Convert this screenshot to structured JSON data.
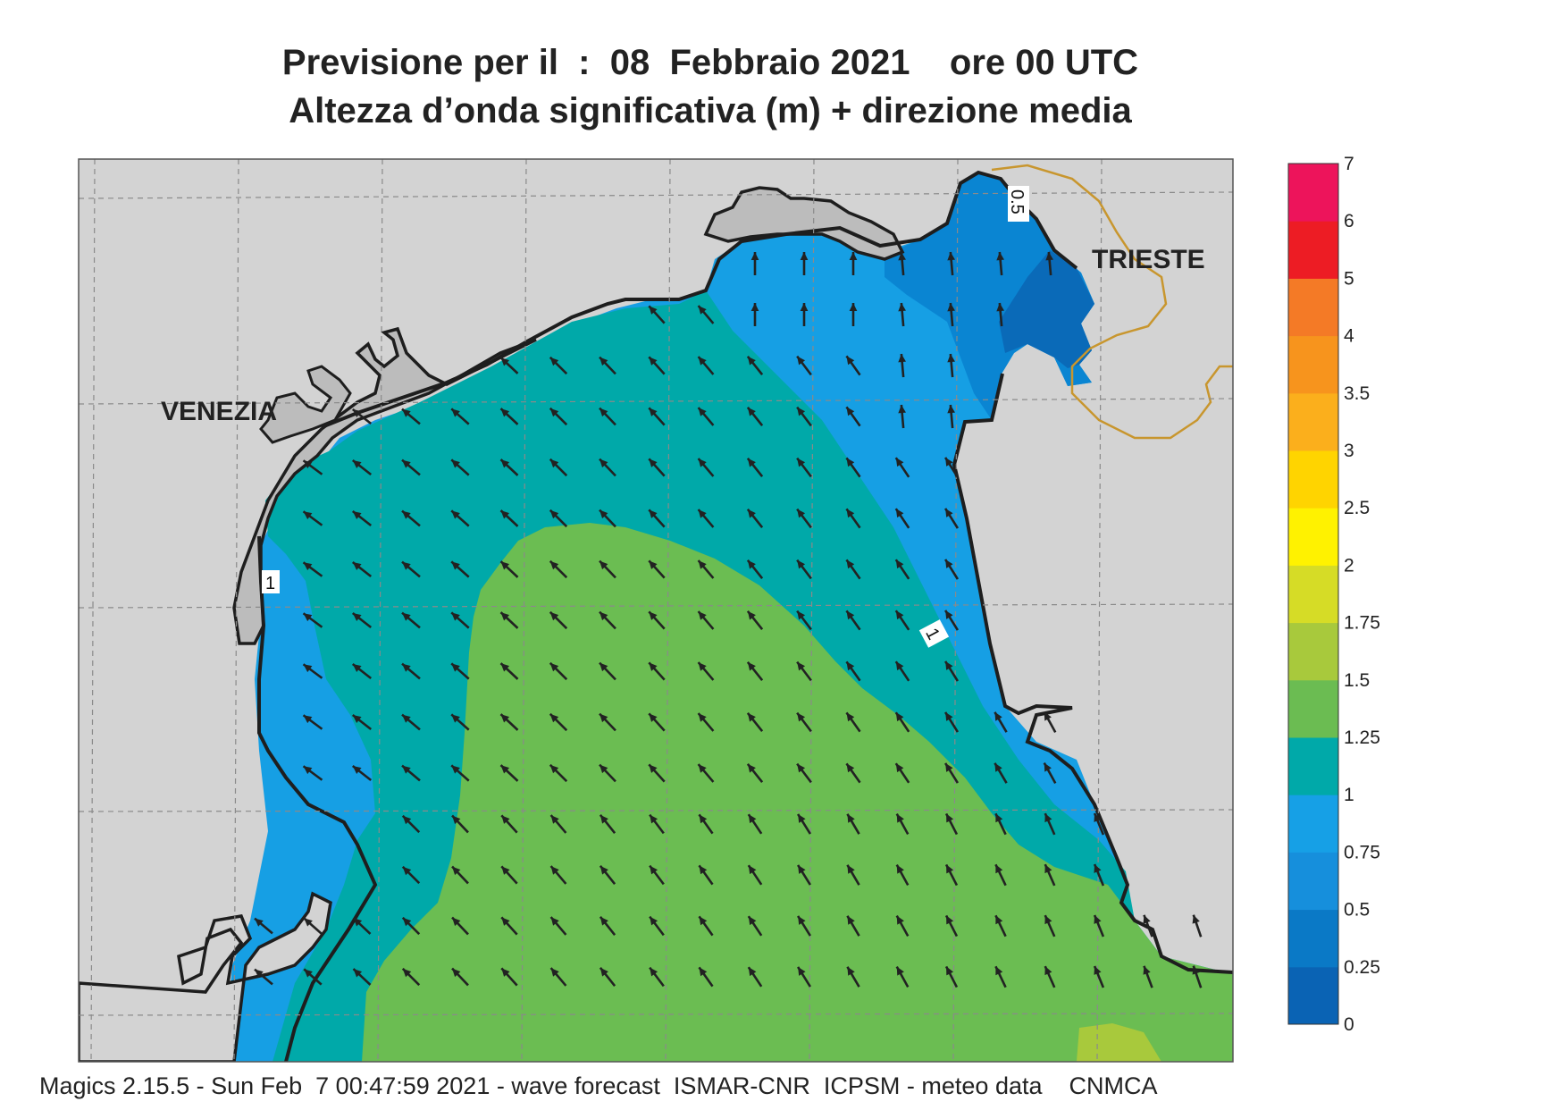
{
  "title_line1": "Previsione per il  :  08  Febbraio 2021    ore 00 UTC",
  "title_line2": "Altezza d’onda significativa (m) + direzione media",
  "footer": "Magics 2.15.5 - Sun Feb  7 00:47:59 2021 - wave forecast  ISMAR-CNR  ICPSM - meteo data    CNMCA",
  "cities": {
    "venezia": "VENEZIA",
    "trieste": "TRIESTE"
  },
  "contour_labels": {
    "venice_coast": "1",
    "istria": "1",
    "trieste_gulf": "0.5"
  },
  "legend": {
    "ticks": [
      "0",
      "0.25",
      "0.5",
      "0.75",
      "1",
      "1.25",
      "1.5",
      "1.75",
      "2",
      "2.5",
      "3",
      "3.5",
      "4",
      "5",
      "6",
      "7"
    ],
    "colors": [
      "#0a63b4",
      "#0a79c6",
      "#168fdc",
      "#16a0e6",
      "#00a9a9",
      "#6bbc52",
      "#a8c93c",
      "#d6dc26",
      "#fff200",
      "#ffd400",
      "#fbaf1c",
      "#f7941d",
      "#f47a26",
      "#ed1c24",
      "#ed145b"
    ]
  },
  "colors": {
    "land": "#d3d3d3",
    "coast_land": "#bcbcbc",
    "border": "#c8962e",
    "arrow": "#222222"
  }
}
